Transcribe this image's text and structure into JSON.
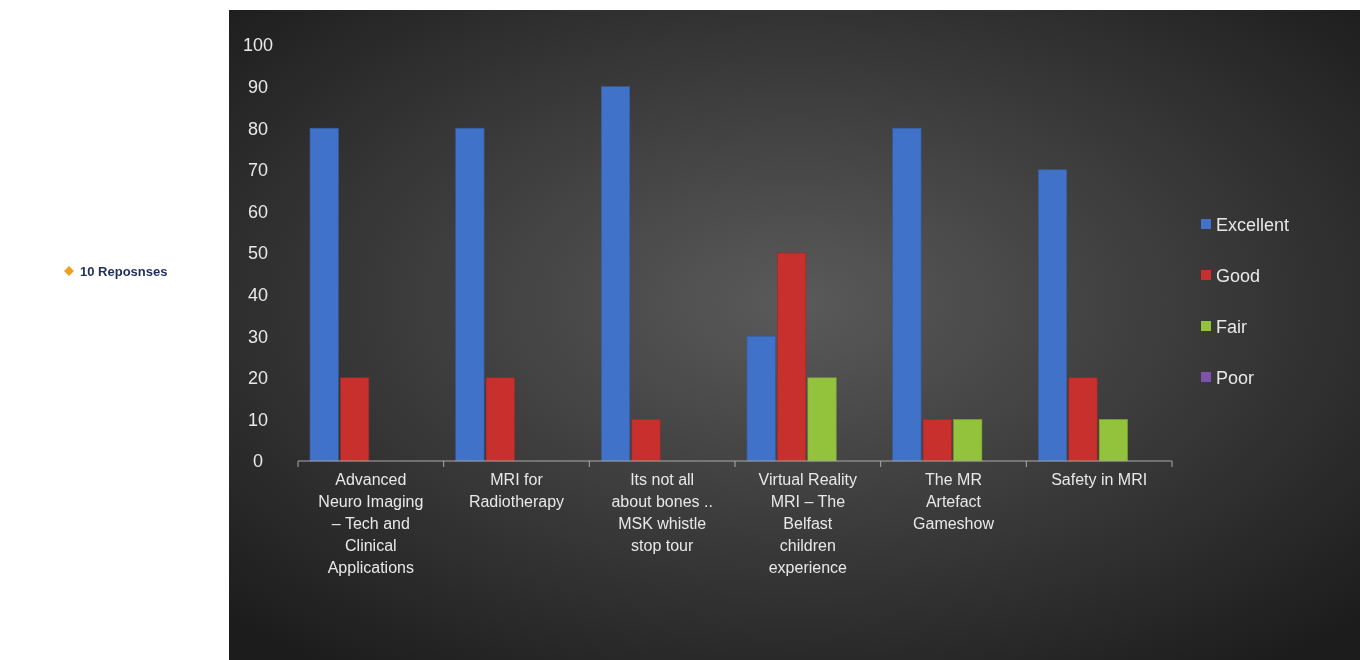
{
  "chart_data": {
    "type": "bar",
    "categories": [
      "Advanced Neuro Imaging – Tech and Clinical Applications",
      "MRI for Radiotherapy",
      "Its not all about bones .. MSK whistle stop tour",
      "Virtual Reality MRI – The Belfast children experience",
      "The MR Artefact Gameshow",
      "Safety in MRI"
    ],
    "series": [
      {
        "name": "Excellent",
        "color": "#3f72c8",
        "values": [
          80,
          80,
          90,
          30,
          80,
          70
        ]
      },
      {
        "name": "Good",
        "color": "#c8302e",
        "values": [
          20,
          20,
          10,
          50,
          10,
          20
        ]
      },
      {
        "name": "Fair",
        "color": "#93c23c",
        "values": [
          0,
          0,
          0,
          20,
          10,
          10
        ]
      },
      {
        "name": "Poor",
        "color": "#7d52ad",
        "values": [
          0,
          0,
          0,
          0,
          0,
          0
        ]
      }
    ],
    "ylim": [
      0,
      100
    ],
    "yticks": [
      0,
      10,
      20,
      30,
      40,
      50,
      60,
      70,
      80,
      90,
      100
    ],
    "grid": false,
    "legend": "right",
    "annotations": [
      "10 Reposnses"
    ]
  }
}
